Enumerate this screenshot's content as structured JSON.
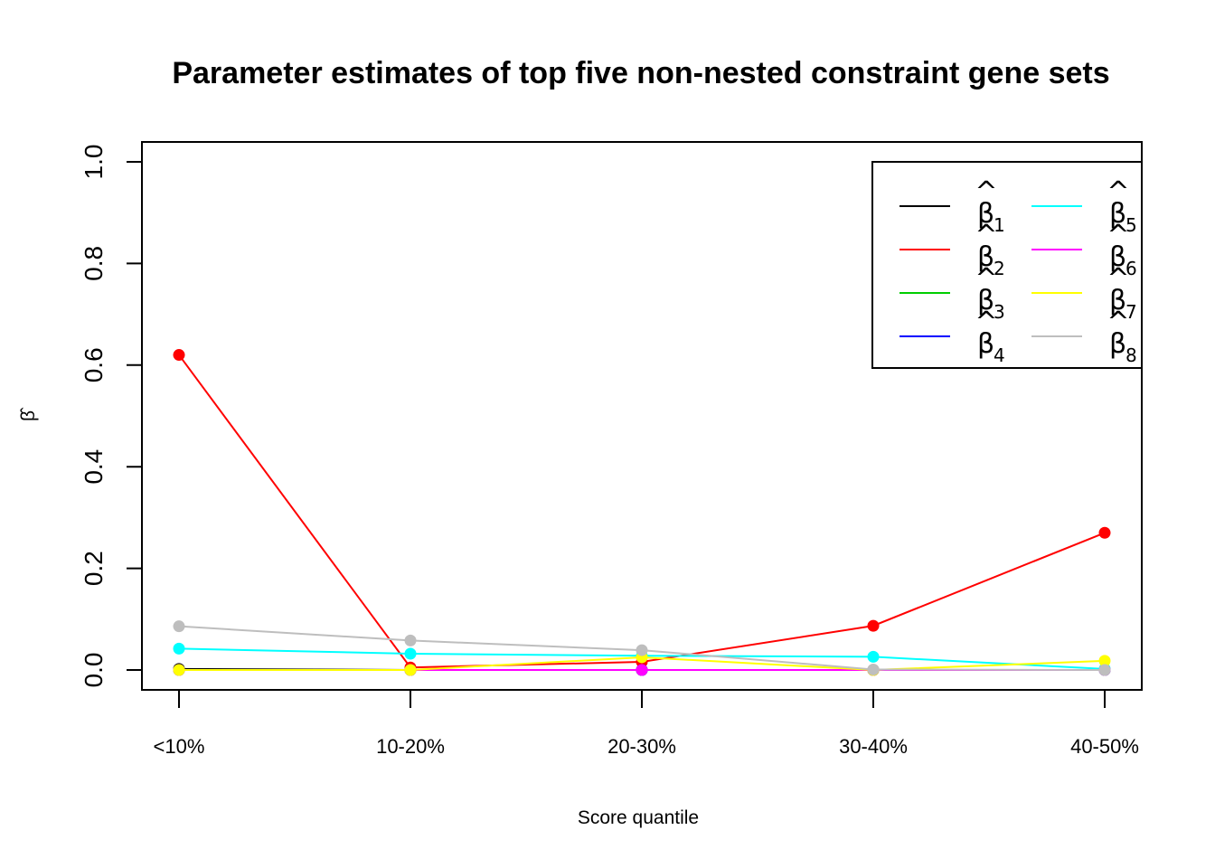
{
  "chart_data": {
    "type": "line",
    "title": "Parameter estimates of top five non-nested constraint gene sets",
    "xlabel": "Score quantile",
    "ylabel": "β̂",
    "categories": [
      "<10%",
      "10-20%",
      "20-30%",
      "30-40%",
      "40-50%"
    ],
    "ylim": [
      0,
      1
    ],
    "yticks": [
      "0.0",
      "0.2",
      "0.4",
      "0.6",
      "0.8",
      "1.0"
    ],
    "grid": false,
    "legend_placement": "top-right",
    "series": [
      {
        "name": "β̂1",
        "sub": "1",
        "color": "#000000",
        "values": [
          0.002,
          0.0,
          0.0,
          0.0,
          0.0
        ]
      },
      {
        "name": "β̂2",
        "sub": "2",
        "color": "#ff0000",
        "values": [
          0.62,
          0.005,
          0.016,
          0.087,
          0.27
        ]
      },
      {
        "name": "β̂3",
        "sub": "3",
        "color": "#00cd00",
        "values": [
          0.0,
          0.0,
          0.0,
          0.0,
          0.0
        ]
      },
      {
        "name": "β̂4",
        "sub": "4",
        "color": "#0000ff",
        "values": [
          0.0,
          0.0,
          0.0,
          0.0,
          0.0
        ]
      },
      {
        "name": "β̂5",
        "sub": "5",
        "color": "#00ffff",
        "values": [
          0.042,
          0.032,
          0.028,
          0.026,
          0.002
        ]
      },
      {
        "name": "β̂6",
        "sub": "6",
        "color": "#ff00ff",
        "values": [
          0.0,
          0.0,
          0.0,
          0.0,
          0.0
        ]
      },
      {
        "name": "β̂7",
        "sub": "7",
        "color": "#ffff00",
        "values": [
          0.0,
          0.0,
          0.025,
          0.0,
          0.018
        ]
      },
      {
        "name": "β̂8",
        "sub": "8",
        "color": "#bebebe",
        "values": [
          0.086,
          0.058,
          0.039,
          0.001,
          0.0
        ]
      }
    ]
  }
}
